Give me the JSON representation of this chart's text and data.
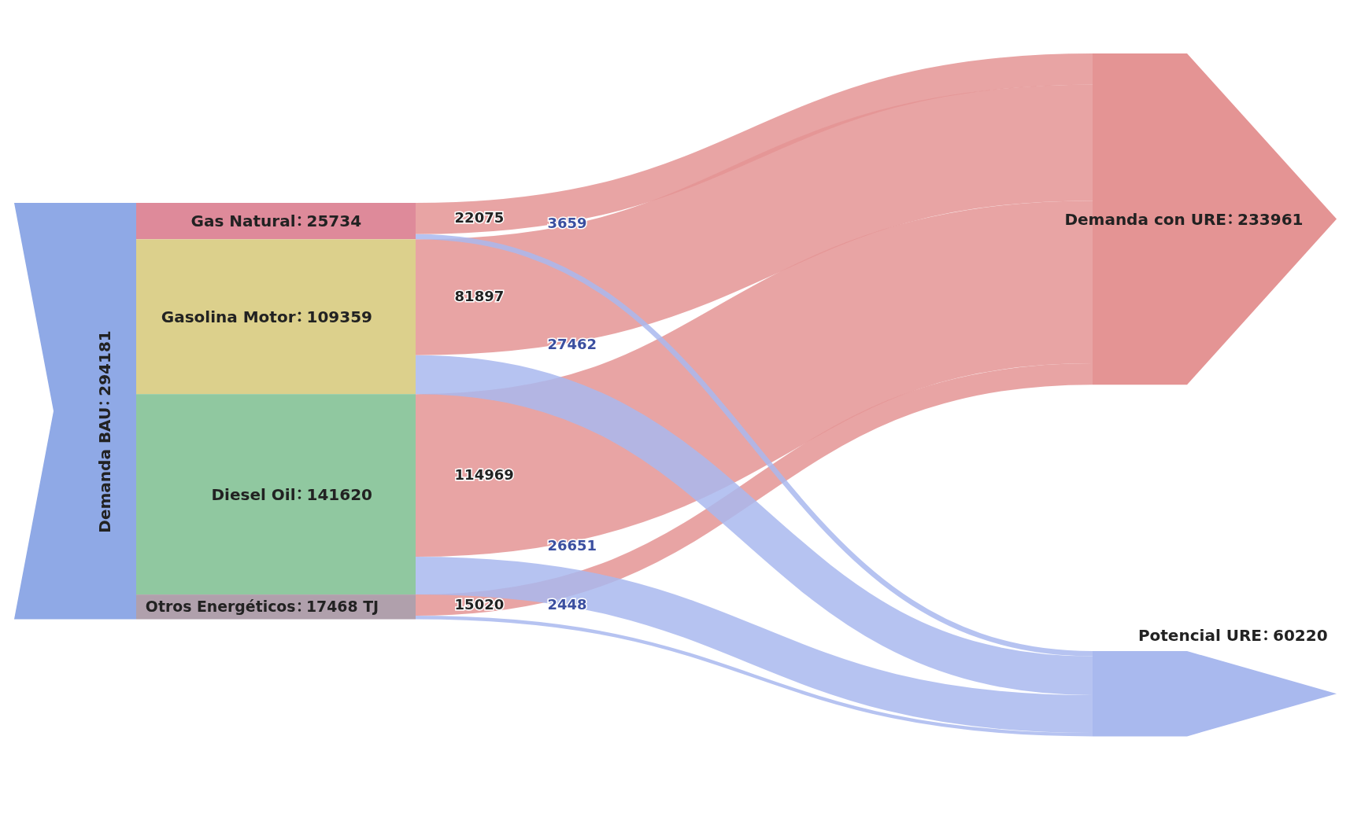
{
  "chart_data": {
    "type": "other",
    "categories": [
      "Demanda BAU",
      "Gas Natural",
      "Gasolina Motor",
      "Diesel Oil",
      "Otros Energéticos",
      "Demanda con URE",
      "Potencial URE"
    ],
    "data_labels": true,
    "values": [
      294181,
      25734,
      109359,
      141620,
      17468,
      233961,
      60220
    ],
    "value_labels": [
      "294181",
      "25734",
      "109359",
      "141620",
      "17468 TJ",
      "233961",
      "60220"
    ],
    "colors": [
      "#8fa9e6",
      "#de8a9a",
      "#dcd08c",
      "#90c8a0",
      "#b0a0ac",
      "#e49494",
      "#a9b9ee"
    ],
    "series": [
      {
        "color": "#e49494",
        "values": [
          null,
          22075,
          81897,
          114969,
          15020,
          null,
          null
        ]
      },
      {
        "color": "#a9b9ee",
        "values": [
          null,
          3659,
          27462,
          26651,
          2448,
          null,
          null
        ]
      }
    ]
  }
}
